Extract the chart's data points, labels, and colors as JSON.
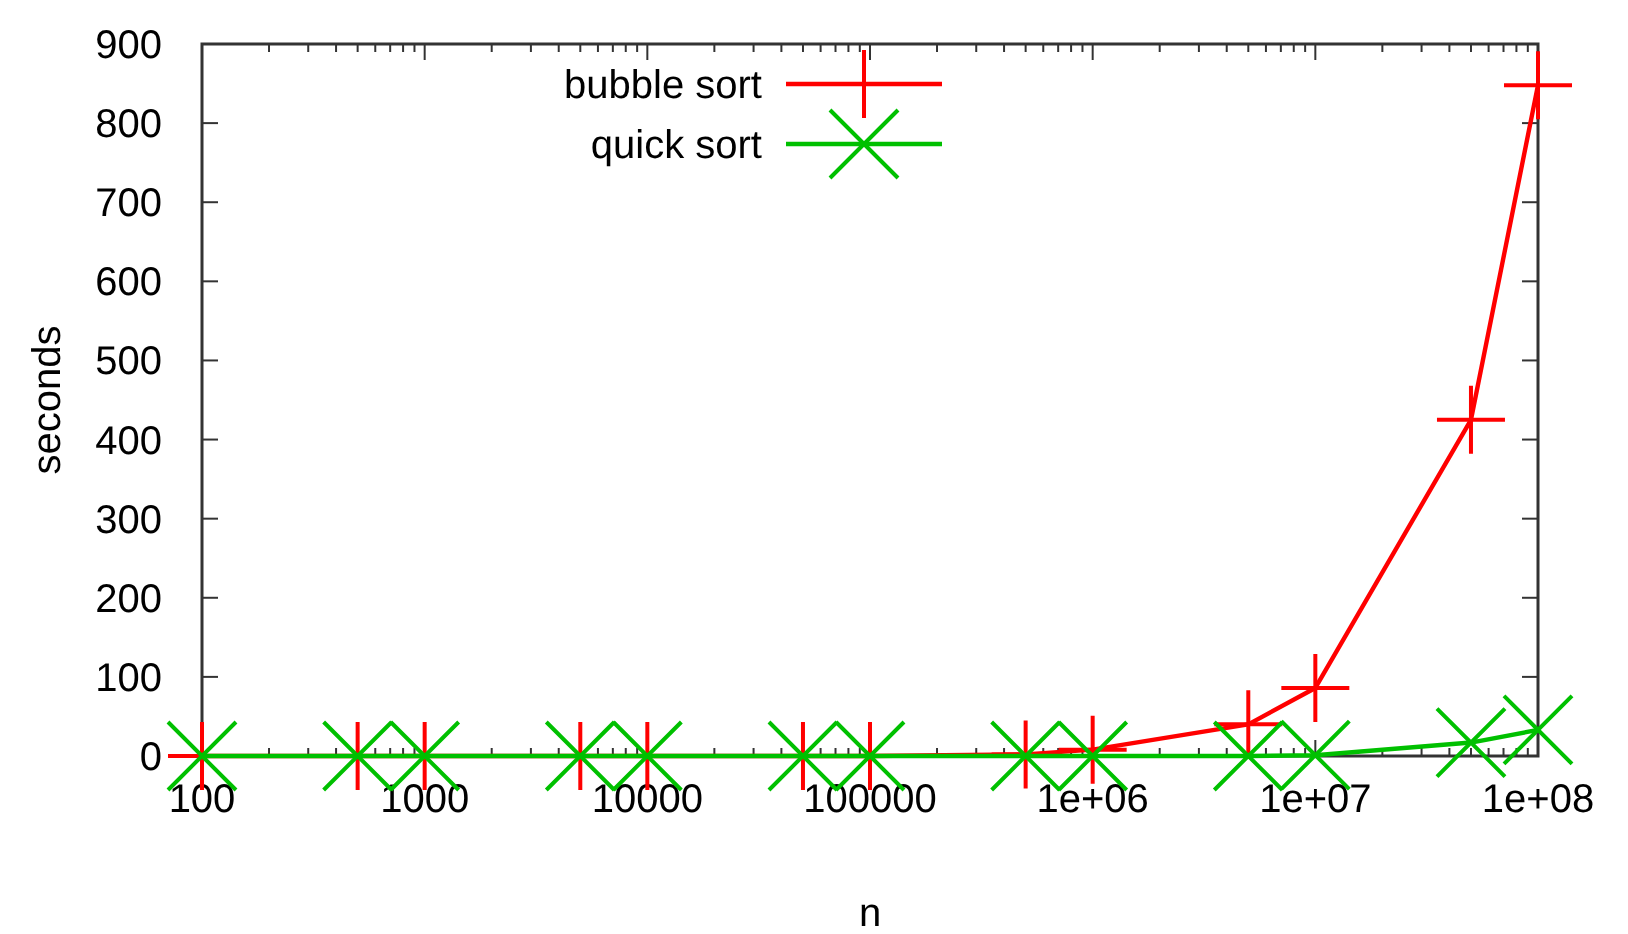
{
  "chart_data": {
    "type": "line",
    "xlabel": "n",
    "ylabel": "seconds",
    "log": "x",
    "x": [
      100,
      500,
      1000,
      5000,
      10000,
      50000,
      100000,
      500000,
      1000000,
      5000000,
      10000000,
      50000000,
      100000000
    ],
    "series": [
      {
        "name": "bubble sort",
        "color": "#ff0000",
        "marker": "cross",
        "values": [
          0,
          0,
          0,
          0,
          0,
          0,
          0,
          2,
          8,
          40,
          86,
          425,
          848
        ]
      },
      {
        "name": "quick sort",
        "color": "#00c000",
        "marker": "x",
        "values": [
          0,
          0,
          0,
          0,
          0,
          0,
          0,
          0,
          0,
          0,
          1,
          17,
          33
        ]
      }
    ],
    "xlim": [
      100,
      100000000
    ],
    "xticks": [
      100,
      1000,
      10000,
      100000,
      {
        "value": 1000000,
        "label": "1e+06"
      },
      {
        "value": 10000000,
        "label": "1e+07"
      },
      {
        "value": 100000000,
        "label": "1e+08"
      }
    ],
    "ylim": [
      0,
      900
    ],
    "yticks": [
      0,
      100,
      200,
      300,
      400,
      500,
      600,
      700,
      800,
      900
    ],
    "legend": "top left",
    "line_style": "solid"
  }
}
